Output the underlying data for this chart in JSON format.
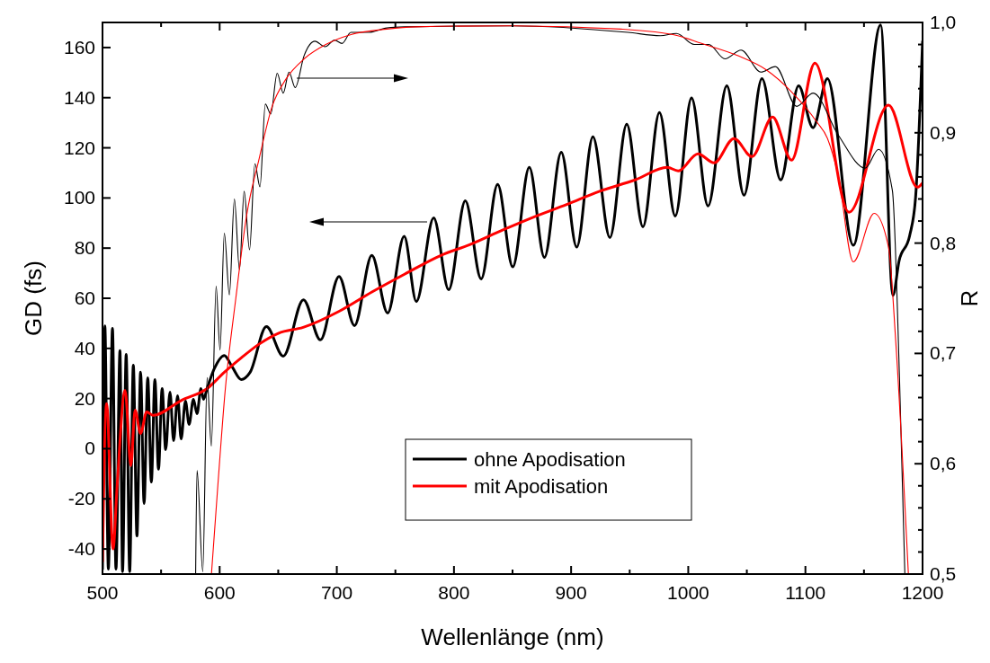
{
  "chart_data": {
    "type": "line",
    "xlabel": "Wellenlänge (nm)",
    "ylabel": "GD (fs)",
    "y2label": "R",
    "xlim": [
      500,
      1200
    ],
    "xticks": [
      500,
      {
        "value": 550,
        "label": null
      },
      600,
      {
        "value": 650,
        "label": null
      },
      700,
      {
        "value": 750,
        "label": null
      },
      800,
      {
        "value": 850,
        "label": null
      },
      900,
      {
        "value": 950,
        "label": null
      },
      1000,
      {
        "value": 1050,
        "label": null
      },
      1100,
      {
        "value": 1150,
        "label": null
      },
      1200
    ],
    "ylim": [
      -50,
      170
    ],
    "yticks": [
      -40,
      -20,
      0,
      20,
      40,
      60,
      80,
      100,
      120,
      140,
      160
    ],
    "y2lim": [
      0.5,
      1.0
    ],
    "y2ticks": [
      {
        "value": 0.5,
        "label": "0,5"
      },
      {
        "value": 0.52,
        "label": null
      },
      {
        "value": 0.54,
        "label": null
      },
      {
        "value": 0.56,
        "label": null
      },
      {
        "value": 0.58,
        "label": null
      },
      {
        "value": 0.6,
        "label": "0,6"
      },
      {
        "value": 0.62,
        "label": null
      },
      {
        "value": 0.64,
        "label": null
      },
      {
        "value": 0.66,
        "label": null
      },
      {
        "value": 0.68,
        "label": null
      },
      {
        "value": 0.7,
        "label": "0,7"
      },
      {
        "value": 0.72,
        "label": null
      },
      {
        "value": 0.74,
        "label": null
      },
      {
        "value": 0.76,
        "label": null
      },
      {
        "value": 0.78,
        "label": null
      },
      {
        "value": 0.8,
        "label": "0,8"
      },
      {
        "value": 0.82,
        "label": null
      },
      {
        "value": 0.84,
        "label": null
      },
      {
        "value": 0.86,
        "label": null
      },
      {
        "value": 0.88,
        "label": null
      },
      {
        "value": 0.9,
        "label": "0,9"
      },
      {
        "value": 0.92,
        "label": null
      },
      {
        "value": 0.94,
        "label": null
      },
      {
        "value": 0.96,
        "label": null
      },
      {
        "value": 0.98,
        "label": null
      },
      {
        "value": 1.0,
        "label": "1,0"
      }
    ],
    "grid": false,
    "legend": "bottom",
    "marker": "none",
    "line_style": "solid",
    "series": [
      {
        "name": "ohne Apodisation",
        "color": "#000000",
        "x": [
          500,
          502,
          505,
          508.5,
          511.5,
          514.9,
          517.1,
          520.2,
          523.2,
          526.3,
          529.4,
          532.5,
          535.5,
          538.6,
          541.7,
          544.7,
          547.8,
          550.9,
          553.9,
          557.6,
          560.7,
          564.1,
          567.1,
          570.8,
          573.9,
          577.6,
          580.7,
          584,
          586.2,
          589.3,
          595.4,
          604,
          610.7,
          618.4,
          626,
          639.9,
          654.3,
          671.5,
          686,
          701.9,
          715.1,
          729.9,
          743.4,
          757.5,
          767.9,
          782.7,
          795.5,
          809.7,
          823.2,
          837.3,
          850.2,
          864.3,
          877.2,
          891.6,
          904.8,
          918.6,
          933.1,
          947.5,
          961.3,
          975.4,
          988.9,
          1002.8,
          1016.9,
          1032.9,
          1047.6,
          1062.9,
          1078.9,
          1094.2,
          1106.5,
          1118.8,
          1140.9,
          1164.2,
          1174.7,
          1180,
          1189,
          1194,
          1200
        ],
        "values": [
          -48,
          49,
          -48,
          48,
          -48,
          39.1,
          -49,
          37.6,
          -49,
          33.3,
          -34.8,
          30.5,
          -21.9,
          28.3,
          -13.3,
          27.6,
          -8.2,
          24,
          -0.4,
          22.6,
          3.2,
          21.1,
          3.9,
          19,
          9.7,
          19.7,
          14,
          24,
          19.7,
          24,
          31.9,
          37.2,
          32.6,
          27.6,
          30.5,
          48.7,
          36.9,
          59.4,
          43.4,
          68.7,
          49.1,
          77.1,
          54.1,
          84.7,
          58.7,
          92.1,
          63.4,
          98.9,
          67.7,
          105.4,
          72.5,
          112.2,
          76.3,
          118.2,
          80.4,
          124.4,
          84.2,
          129.4,
          88.5,
          134.1,
          92.8,
          139.9,
          96.8,
          144.7,
          101.1,
          147.6,
          107.2,
          144.7,
          128,
          147.6,
          81.1,
          169,
          61.1,
          75,
          85,
          100,
          162.4
        ]
      },
      {
        "name": "mit Apodisation",
        "color": "#ff0000",
        "x": [
          500,
          503.5,
          509,
          512.5,
          519.3,
          524.2,
          527.8,
          532.5,
          537.7,
          543.2,
          567.8,
          589.3,
          604,
          618.4,
          633,
          650,
          671.3,
          702,
          730,
          757.8,
          788.8,
          813.4,
          841,
          868.6,
          896.2,
          923.9,
          954.6,
          982.2,
          991.4,
          1008.3,
          1022.1,
          1039,
          1054.4,
          1072,
          1088.2,
          1108.1,
          1137.2,
          1171,
          1195.6,
          1200
        ],
        "values": [
          -45,
          18,
          -40,
          -14.7,
          23.3,
          -6.8,
          15.4,
          6.1,
          14.7,
          13.3,
          19.4,
          24,
          30.5,
          36.2,
          41.5,
          46,
          48.4,
          54.8,
          62.5,
          69.6,
          77.1,
          81.4,
          87.1,
          92.5,
          97.4,
          102.6,
          107.2,
          112.2,
          110.8,
          117.6,
          114,
          123.7,
          116.5,
          132.3,
          115.1,
          153.8,
          94.3,
          137,
          104.3,
          106
        ]
      },
      {
        "color": "#000000",
        "axis": "y2",
        "x": [
          579.5,
          580.7,
          585.6,
          589.3,
          592.9,
          597,
          600.3,
          604,
          608.3,
          612.6,
          616.9,
          620.9,
          625.5,
          630.1,
          634.4,
          639,
          643.6,
          649.1,
          654.3,
          659.2,
          664.5,
          672.1,
          681.3,
          689.9,
          698.2,
          704.4,
          712.1,
          727.4,
          742.7,
          758.1,
          850,
          948.5,
          976.1,
          989.9,
          1005.2,
          1017.5,
          1031.3,
          1045.1,
          1062,
          1074.3,
          1092.7,
          1106.5,
          1128,
          1151,
          1162.4,
          1174.2,
          1180.3,
          1184.9
        ],
        "values": [
          0.5,
          0.594,
          0.502,
          0.678,
          0.616,
          0.761,
          0.703,
          0.809,
          0.753,
          0.84,
          0.776,
          0.847,
          0.794,
          0.872,
          0.851,
          0.926,
          0.917,
          0.954,
          0.936,
          0.955,
          0.941,
          0.97,
          0.983,
          0.978,
          0.984,
          0.981,
          0.991,
          0.991,
          0.995,
          0.996,
          0.997,
          0.991,
          0.988,
          0.99,
          0.98,
          0.98,
          0.967,
          0.975,
          0.955,
          0.96,
          0.924,
          0.936,
          0.898,
          0.868,
          0.885,
          0.848,
          0.678,
          0.5
        ]
      },
      {
        "color": "#ff0000",
        "axis": "y2",
        "x": [
          593,
          598.5,
          604.6,
          613.8,
          623,
          633.8,
          644.5,
          656.8,
          672.1,
          690.6,
          712.1,
          742.7,
          767.3,
          850.2,
          942.3,
          991.1,
          1011.3,
          1042,
          1066.6,
          1088.2,
          1109.6,
          1118.8,
          1128,
          1140.9,
          1158.7,
          1171,
          1177.1,
          1187.9
        ],
        "values": [
          0.5,
          0.581,
          0.665,
          0.75,
          0.825,
          0.877,
          0.923,
          0.949,
          0.967,
          0.98,
          0.989,
          0.994,
          0.996,
          0.997,
          0.994,
          0.988,
          0.981,
          0.97,
          0.957,
          0.937,
          0.91,
          0.895,
          0.861,
          0.783,
          0.827,
          0.796,
          0.711,
          0.5
        ]
      }
    ]
  }
}
